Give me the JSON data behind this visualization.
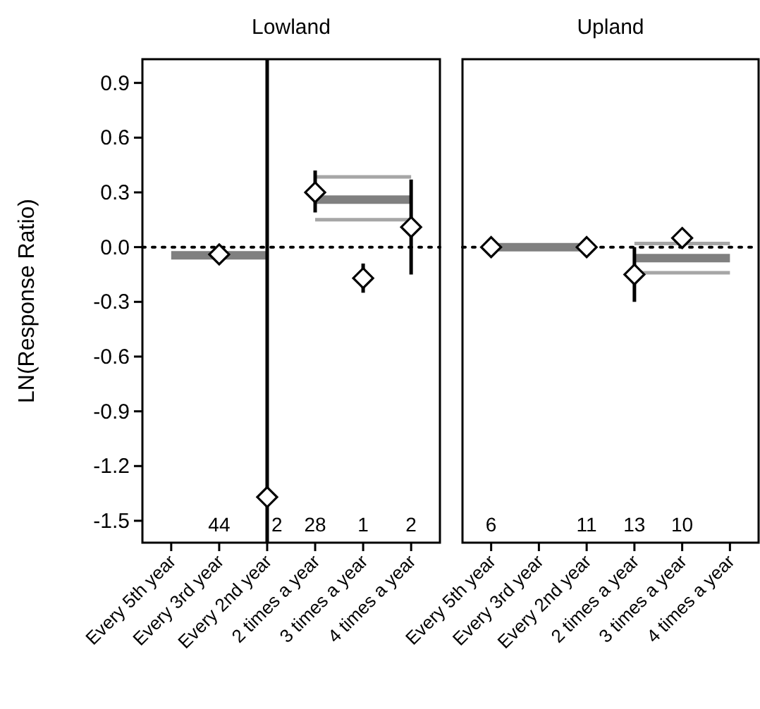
{
  "chart_data": [
    {
      "type": "scatter",
      "title": "Lowland",
      "ylabel": "LN(Response Ratio)",
      "categories": [
        "Every 5th year",
        "Every 3rd year",
        "Every 2nd year",
        "2 times a year",
        "3 times a year",
        "4 times a year"
      ],
      "ylim": [
        -1.62,
        1.03
      ],
      "yticks": [
        -1.5,
        -1.2,
        -0.9,
        -0.6,
        -0.3,
        {
          "value": 0,
          "label": "0.0"
        },
        0.3,
        0.6,
        0.9
      ],
      "marker": "diamond",
      "grid": false,
      "ref_lines": [
        {
          "axis": "y",
          "value": 0,
          "line_style": "dotted",
          "color": "#000000"
        }
      ],
      "series": [
        {
          "type": "line",
          "marker": "none",
          "color": "#808080",
          "x": [
            "Every 5th year",
            "Every 2nd year"
          ],
          "values": [
            -0.045,
            -0.045
          ]
        },
        {
          "type": "line",
          "marker": "none",
          "color": "#a6a6a6",
          "x": [
            "2 times a year",
            "4 times a year"
          ],
          "values": [
            0.385,
            0.385
          ]
        },
        {
          "type": "line",
          "marker": "none",
          "color": "#808080",
          "x": [
            "2 times a year",
            "4 times a year"
          ],
          "values": [
            0.26,
            0.26
          ]
        },
        {
          "type": "line",
          "marker": "none",
          "color": "#a6a6a6",
          "x": [
            "2 times a year",
            "4 times a year"
          ],
          "values": [
            0.15,
            0.15
          ]
        },
        {
          "color": "#000000",
          "values": [
            null,
            -0.04,
            -1.37,
            0.3,
            -0.17,
            0.11
          ],
          "errors": [
            null,
            null,
            [
              -1.62,
              1.03
            ],
            [
              0.19,
              0.42
            ],
            [
              -0.25,
              -0.09
            ],
            [
              -0.15,
              0.37
            ]
          ]
        }
      ],
      "annotations": [
        "44",
        "2",
        "28",
        "1",
        "2"
      ]
    },
    {
      "type": "scatter",
      "title": "Upland",
      "categories": [
        "Every 5th year",
        "Every 3rd year",
        "Every 2nd year",
        "2 times a year",
        "3 times a year",
        "4 times a year"
      ],
      "ylim": [
        -1.62,
        1.03
      ],
      "tick_labels": "x",
      "marker": "diamond",
      "grid": false,
      "ref_lines": [
        {
          "axis": "y",
          "value": 0,
          "line_style": "dotted",
          "color": "#000000"
        }
      ],
      "series": [
        {
          "type": "line",
          "marker": "none",
          "color": "#808080",
          "x": [
            "Every 5th year",
            "Every 2nd year"
          ],
          "values": [
            0,
            0
          ]
        },
        {
          "type": "line",
          "marker": "none",
          "color": "#a6a6a6",
          "x": [
            "2 times a year",
            "4 times a year"
          ],
          "values": [
            0.02,
            0.02
          ]
        },
        {
          "type": "line",
          "marker": "none",
          "color": "#808080",
          "x": [
            "2 times a year",
            "4 times a year"
          ],
          "values": [
            -0.06,
            -0.06
          ]
        },
        {
          "type": "line",
          "marker": "none",
          "color": "#a6a6a6",
          "x": [
            "2 times a year",
            "4 times a year"
          ],
          "values": [
            -0.14,
            -0.14
          ]
        },
        {
          "color": "#000000",
          "values": [
            0,
            null,
            0,
            -0.15,
            0.05,
            null
          ],
          "errors": [
            null,
            null,
            null,
            [
              -0.3,
              0
            ],
            null,
            null
          ]
        }
      ],
      "annotations": [
        "6",
        "11",
        "13",
        "10"
      ]
    }
  ]
}
